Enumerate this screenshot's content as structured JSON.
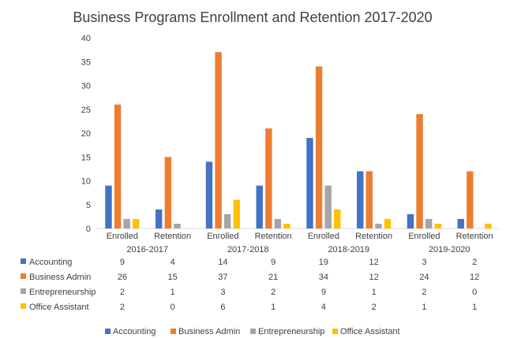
{
  "chart_data": {
    "type": "bar",
    "title": "Business Programs Enrollment and Retention 2017-2020",
    "ylim": [
      0,
      40
    ],
    "y_ticks": [
      0,
      5,
      10,
      15,
      20,
      25,
      30,
      35,
      40
    ],
    "grid": false,
    "legend_position": "bottom",
    "groups": [
      "2016-2017",
      "2017-2018",
      "2018-2019",
      "2019-2020"
    ],
    "categories": [
      "Enrolled",
      "Retention",
      "Enrolled",
      "Retention",
      "Enrolled",
      "Retention",
      "Enrolled",
      "Retention"
    ],
    "series": [
      {
        "name": "Accounting",
        "color": "#4472C4",
        "values": [
          9,
          4,
          14,
          9,
          19,
          12,
          3,
          2
        ]
      },
      {
        "name": "Business Admin",
        "color": "#ED7D31",
        "values": [
          26,
          15,
          37,
          21,
          34,
          12,
          24,
          12
        ]
      },
      {
        "name": "Entrepreneurship",
        "color": "#A5A5A5",
        "values": [
          2,
          1,
          3,
          2,
          9,
          1,
          2,
          0
        ]
      },
      {
        "name": "Office Assistant",
        "color": "#FFC000",
        "values": [
          2,
          0,
          6,
          1,
          4,
          2,
          1,
          1
        ]
      }
    ],
    "data_table": true
  }
}
